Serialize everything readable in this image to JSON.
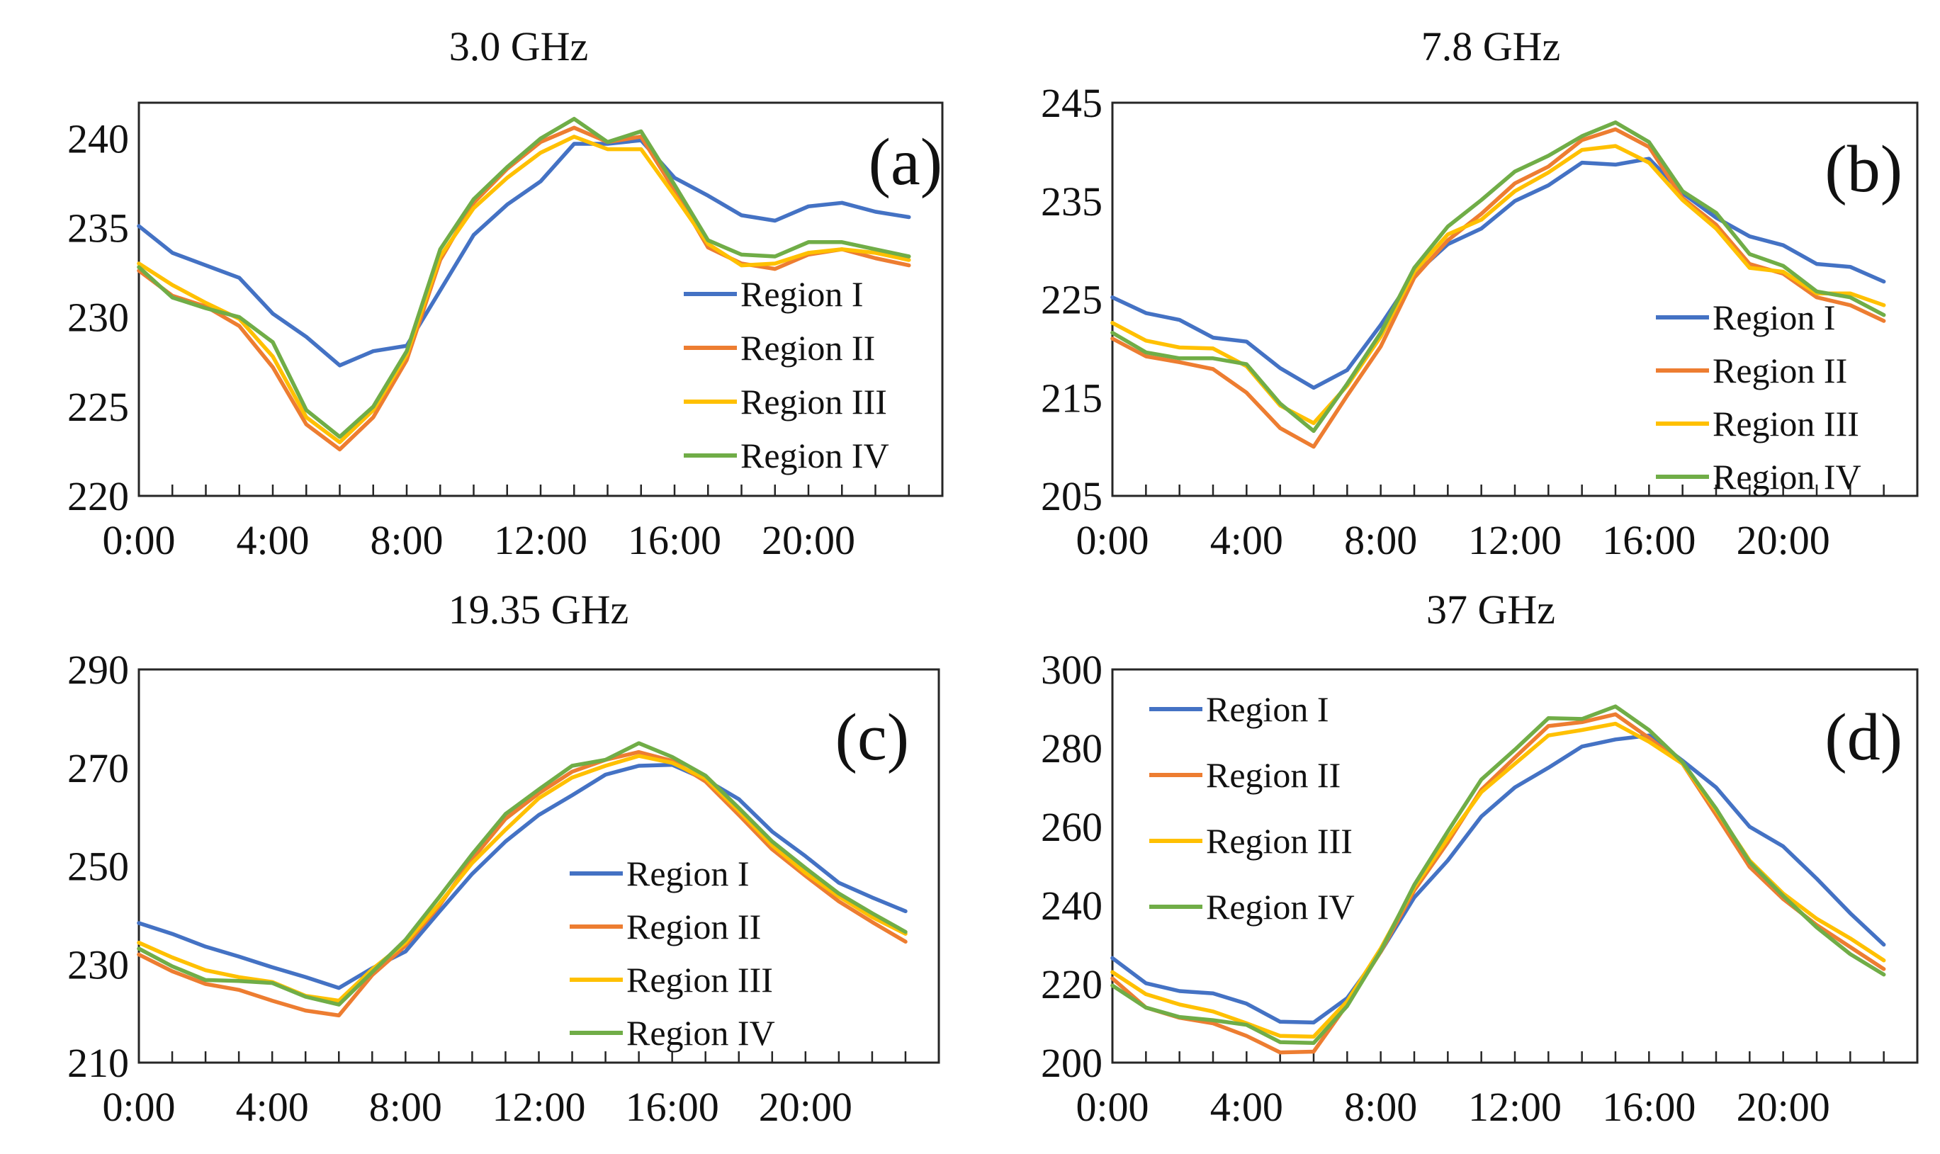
{
  "chart_data": [
    {
      "type": "line",
      "panel_label": "(a)",
      "title": "3.0 GHz",
      "xlabel": "",
      "ylabel": "",
      "x_tick_labels": [
        "0:00",
        "4:00",
        "8:00",
        "12:00",
        "16:00",
        "20:00"
      ],
      "x_tick_hours": [
        0,
        4,
        8,
        12,
        16,
        20
      ],
      "x_range": [
        0,
        24
      ],
      "y_ticks": [
        220,
        225,
        230,
        235,
        240
      ],
      "ylim": [
        220,
        242
      ],
      "grid": false,
      "legend_position": "center-right",
      "hours": [
        0,
        1,
        2,
        3,
        4,
        5,
        6,
        7,
        8,
        9,
        10,
        11,
        12,
        13,
        14,
        15,
        16,
        17,
        18,
        19,
        20,
        21,
        22,
        23
      ],
      "series": [
        {
          "name": "Region I",
          "color": "#4472C4",
          "values": [
            235.1,
            233.6,
            232.9,
            232.2,
            230.2,
            228.9,
            227.3,
            228.1,
            228.4,
            231.5,
            234.6,
            236.3,
            237.6,
            239.7,
            239.7,
            239.9,
            237.8,
            236.8,
            235.7,
            235.4,
            236.2,
            236.4,
            235.9,
            235.6
          ]
        },
        {
          "name": "Region II",
          "color": "#ED7D31",
          "values": [
            232.6,
            231.2,
            230.6,
            229.5,
            227.2,
            224.0,
            222.6,
            224.4,
            227.6,
            233.2,
            236.4,
            238.3,
            239.8,
            240.6,
            239.8,
            240.1,
            237.1,
            233.9,
            233.0,
            232.7,
            233.5,
            233.8,
            233.3,
            232.9
          ]
        },
        {
          "name": "Region III",
          "color": "#FFC000",
          "values": [
            233.0,
            231.8,
            230.8,
            229.9,
            227.8,
            224.4,
            223.0,
            224.8,
            227.9,
            233.4,
            236.1,
            237.8,
            239.2,
            240.1,
            239.4,
            239.4,
            236.8,
            234.1,
            232.9,
            233.0,
            233.6,
            233.8,
            233.6,
            233.2
          ]
        },
        {
          "name": "Region IV",
          "color": "#70AD47",
          "values": [
            232.8,
            231.1,
            230.5,
            230.0,
            228.6,
            224.8,
            223.3,
            225.0,
            228.1,
            233.8,
            236.6,
            238.4,
            240.0,
            241.1,
            239.8,
            240.4,
            237.4,
            234.3,
            233.5,
            233.4,
            234.2,
            234.2,
            233.8,
            233.4
          ]
        }
      ]
    },
    {
      "type": "line",
      "panel_label": "(b)",
      "title": "7.8 GHz",
      "xlabel": "",
      "ylabel": "",
      "x_tick_labels": [
        "0:00",
        "4:00",
        "8:00",
        "12:00",
        "16:00",
        "20:00"
      ],
      "x_tick_hours": [
        0,
        4,
        8,
        12,
        16,
        20
      ],
      "x_range": [
        0,
        24
      ],
      "y_ticks": [
        205,
        215,
        225,
        235,
        245
      ],
      "ylim": [
        205,
        245
      ],
      "grid": false,
      "legend_position": "bottom-right",
      "hours": [
        0,
        1,
        2,
        3,
        4,
        5,
        6,
        7,
        8,
        9,
        10,
        11,
        12,
        13,
        14,
        15,
        16,
        17,
        18,
        19,
        20,
        21,
        22,
        23
      ],
      "series": [
        {
          "name": "Region I",
          "color": "#4472C4",
          "values": [
            225.2,
            223.6,
            222.9,
            221.1,
            220.7,
            218.0,
            216.0,
            217.8,
            222.4,
            227.5,
            230.6,
            232.2,
            235.0,
            236.6,
            238.9,
            238.7,
            239.3,
            235.8,
            233.3,
            231.4,
            230.5,
            228.6,
            228.3,
            226.8
          ]
        },
        {
          "name": "Region II",
          "color": "#ED7D31",
          "values": [
            221.0,
            219.2,
            218.6,
            217.9,
            215.5,
            211.9,
            210.0,
            215.2,
            220.2,
            227.2,
            231.0,
            233.7,
            236.8,
            238.5,
            241.2,
            242.3,
            240.5,
            235.3,
            232.6,
            228.6,
            227.6,
            225.2,
            224.4,
            222.8
          ]
        },
        {
          "name": "Region III",
          "color": "#FFC000",
          "values": [
            222.6,
            220.8,
            220.1,
            220.0,
            218.2,
            214.2,
            212.4,
            216.2,
            221.2,
            227.8,
            231.6,
            233.1,
            236.0,
            237.9,
            240.2,
            240.6,
            238.9,
            235.1,
            232.2,
            228.2,
            227.8,
            225.6,
            225.6,
            224.4
          ]
        },
        {
          "name": "Region IV",
          "color": "#70AD47",
          "values": [
            221.6,
            219.6,
            219.0,
            219.0,
            218.4,
            214.4,
            211.6,
            216.4,
            221.6,
            228.2,
            232.4,
            235.1,
            238.0,
            239.6,
            241.6,
            243.0,
            241.0,
            236.0,
            233.8,
            229.6,
            228.4,
            225.8,
            225.2,
            223.4
          ]
        }
      ]
    },
    {
      "type": "line",
      "panel_label": "(c)",
      "title": "19.35 GHz",
      "xlabel": "",
      "ylabel": "",
      "x_tick_labels": [
        "0:00",
        "4:00",
        "8:00",
        "12:00",
        "16:00",
        "20:00"
      ],
      "x_tick_hours": [
        0,
        4,
        8,
        12,
        16,
        20
      ],
      "x_range": [
        0,
        24
      ],
      "y_ticks": [
        210,
        230,
        250,
        270,
        290
      ],
      "ylim": [
        210,
        290
      ],
      "grid": false,
      "legend_position": "bottom-right",
      "hours": [
        0,
        1,
        2,
        3,
        4,
        5,
        6,
        7,
        8,
        9,
        10,
        11,
        12,
        13,
        14,
        15,
        16,
        17,
        18,
        19,
        20,
        21,
        22,
        23
      ],
      "series": [
        {
          "name": "Region I",
          "color": "#4472C4",
          "values": [
            238.4,
            236.2,
            233.6,
            231.6,
            229.4,
            227.4,
            225.2,
            229.2,
            232.6,
            240.6,
            248.4,
            255.0,
            260.4,
            264.4,
            268.6,
            270.4,
            270.6,
            267.6,
            263.6,
            257.0,
            252.0,
            246.6,
            243.6,
            240.8
          ]
        },
        {
          "name": "Region II",
          "color": "#ED7D31",
          "values": [
            232.0,
            228.6,
            226.0,
            224.8,
            222.6,
            220.6,
            219.6,
            227.8,
            233.8,
            241.8,
            251.4,
            259.6,
            264.8,
            269.2,
            271.6,
            273.2,
            271.4,
            267.2,
            260.4,
            253.4,
            248.0,
            242.8,
            238.6,
            234.6
          ]
        },
        {
          "name": "Region III",
          "color": "#FFC000",
          "values": [
            234.4,
            231.4,
            228.8,
            227.4,
            226.4,
            223.6,
            222.6,
            229.0,
            234.4,
            242.2,
            250.6,
            257.4,
            263.8,
            268.0,
            270.4,
            272.4,
            271.0,
            267.8,
            261.2,
            254.2,
            248.6,
            243.8,
            239.6,
            236.2
          ]
        },
        {
          "name": "Region IV",
          "color": "#70AD47",
          "values": [
            233.2,
            229.6,
            226.8,
            226.6,
            226.2,
            223.4,
            221.8,
            228.4,
            235.0,
            243.6,
            252.4,
            260.6,
            265.6,
            270.4,
            271.6,
            275.0,
            272.2,
            268.4,
            261.8,
            255.0,
            249.6,
            244.4,
            240.4,
            236.6
          ]
        }
      ]
    },
    {
      "type": "line",
      "panel_label": "(d)",
      "title": "37 GHz",
      "xlabel": "",
      "ylabel": "",
      "x_tick_labels": [
        "0:00",
        "4:00",
        "8:00",
        "12:00",
        "16:00",
        "20:00"
      ],
      "x_tick_hours": [
        0,
        4,
        8,
        12,
        16,
        20
      ],
      "x_range": [
        0,
        24
      ],
      "y_ticks": [
        200,
        220,
        240,
        260,
        280,
        300
      ],
      "ylim": [
        200,
        300
      ],
      "grid": false,
      "legend_position": "top-left",
      "hours": [
        0,
        1,
        2,
        3,
        4,
        5,
        6,
        7,
        8,
        9,
        10,
        11,
        12,
        13,
        14,
        15,
        16,
        17,
        18,
        19,
        20,
        21,
        22,
        23
      ],
      "series": [
        {
          "name": "Region I",
          "color": "#4472C4",
          "values": [
            226.6,
            220.2,
            218.2,
            217.6,
            215.0,
            210.4,
            210.2,
            216.4,
            228.2,
            242.0,
            251.4,
            262.6,
            270.0,
            275.0,
            280.4,
            282.2,
            283.2,
            276.8,
            270.0,
            260.0,
            255.0,
            246.8,
            238.0,
            230.0
          ]
        },
        {
          "name": "Region II",
          "color": "#ED7D31",
          "values": [
            221.4,
            214.0,
            211.4,
            210.0,
            206.8,
            202.6,
            202.8,
            214.8,
            228.2,
            243.8,
            256.0,
            269.4,
            277.6,
            285.6,
            286.6,
            288.6,
            282.6,
            276.0,
            263.0,
            249.8,
            241.6,
            235.0,
            229.4,
            223.8
          ]
        },
        {
          "name": "Region III",
          "color": "#FFC000",
          "values": [
            223.0,
            217.4,
            214.8,
            213.0,
            210.0,
            206.8,
            206.6,
            215.6,
            229.0,
            244.6,
            257.0,
            268.8,
            276.0,
            283.2,
            284.6,
            286.2,
            281.6,
            276.0,
            264.2,
            251.4,
            243.0,
            236.6,
            231.6,
            226.0
          ]
        },
        {
          "name": "Region IV",
          "color": "#70AD47",
          "values": [
            219.6,
            214.0,
            211.6,
            210.8,
            209.6,
            205.2,
            205.0,
            214.4,
            228.4,
            245.2,
            258.8,
            272.0,
            279.6,
            287.6,
            287.4,
            290.6,
            284.6,
            276.4,
            264.6,
            251.0,
            242.4,
            234.4,
            227.6,
            222.4
          ]
        }
      ]
    }
  ]
}
